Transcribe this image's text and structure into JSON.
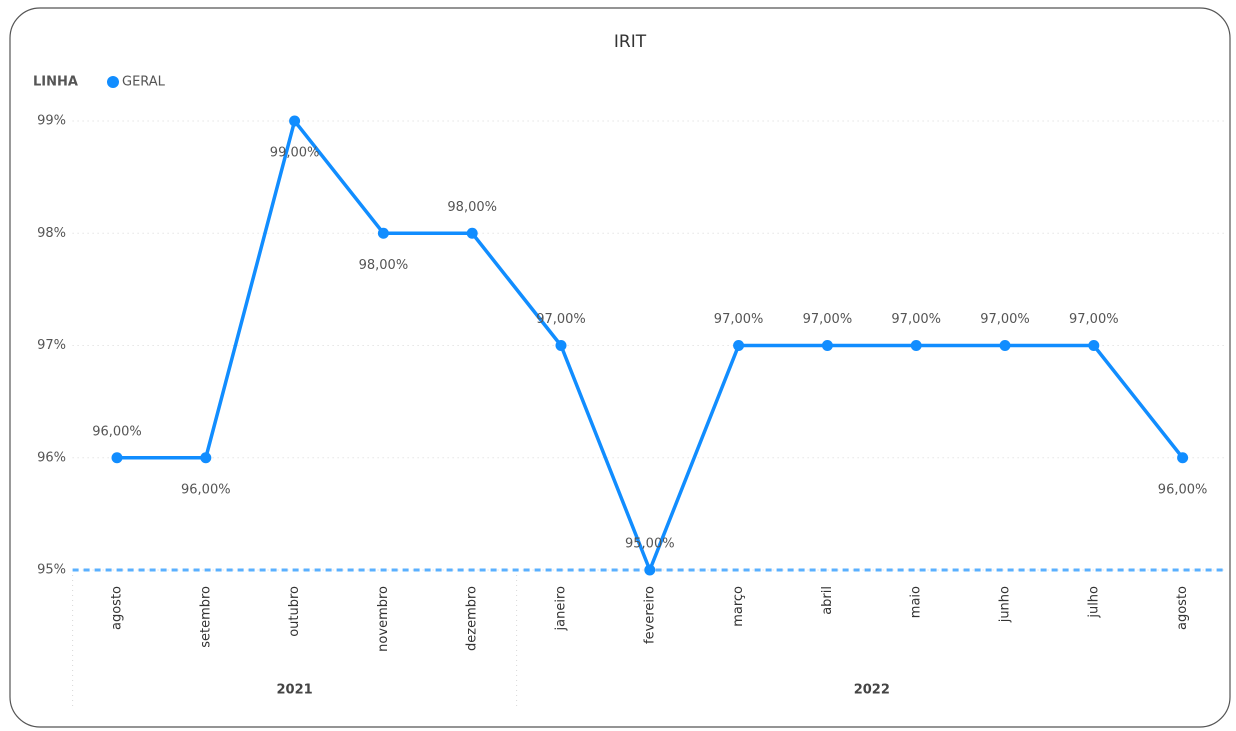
{
  "chart_data": {
    "type": "line",
    "title": "IRIT",
    "legend_title": "LINHA",
    "categories": [
      "agosto",
      "setembro",
      "outubro",
      "novembro",
      "dezembro",
      "janeiro",
      "fevereiro",
      "março",
      "abril",
      "maio",
      "junho",
      "julho",
      "agosto"
    ],
    "year_groups": [
      {
        "name": "2021",
        "count": 5
      },
      {
        "name": "2022",
        "count": 8
      }
    ],
    "series": [
      {
        "name": "GERAL",
        "color": "#118dff",
        "values": [
          96,
          96,
          99,
          98,
          98,
          97,
          95,
          97,
          97,
          97,
          97,
          97,
          96
        ],
        "value_labels": [
          "96,00%",
          "96,00%",
          "99,00%",
          "98,00%",
          "98,00%",
          "97,00%",
          "95,00%",
          "97,00%",
          "97,00%",
          "97,00%",
          "97,00%",
          "97,00%",
          "96,00%"
        ]
      }
    ],
    "reference_line": {
      "value": 95,
      "color": "#5ab0ff"
    },
    "ylim": [
      95,
      99
    ],
    "yticks": [
      {
        "value": 95,
        "label": "95%"
      },
      {
        "value": 96,
        "label": "96%"
      },
      {
        "value": 97,
        "label": "97%"
      },
      {
        "value": 98,
        "label": "98%"
      },
      {
        "value": 99,
        "label": "99%"
      }
    ],
    "grid": true
  }
}
